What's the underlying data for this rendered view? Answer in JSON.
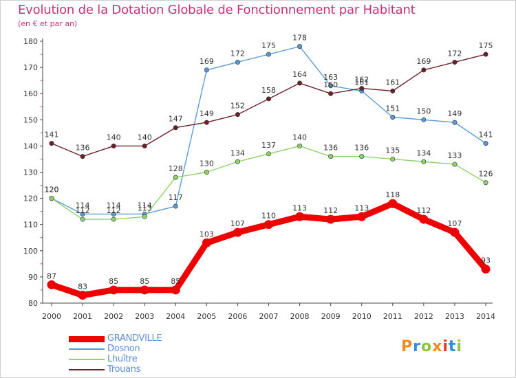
{
  "title": "Evolution de la Dotation Globale de Fonctionnement par Habitant",
  "subtitle": "(en € et par an)",
  "logo": {
    "text": "Proxiti",
    "colors": [
      "#f08c1e",
      "#2f8fd8",
      "#8cc63f",
      "#f08c1e",
      "#e2392b",
      "#2f8fd8",
      "#8cc63f"
    ]
  },
  "chart_data": {
    "type": "line",
    "x": [
      "2000",
      "2001",
      "2002",
      "2003",
      "2004",
      "2005",
      "2006",
      "2007",
      "2008",
      "2009",
      "2010",
      "2011",
      "2012",
      "2013",
      "2014"
    ],
    "ylim": [
      80,
      180
    ],
    "yticks": [
      80,
      90,
      100,
      110,
      120,
      130,
      140,
      150,
      160,
      170,
      180
    ],
    "grid": false,
    "legend_position": "bottom-left",
    "series": [
      {
        "name": "GRANDVILLE",
        "color": "#ee0000",
        "values": [
          87,
          83,
          85,
          85,
          85,
          103,
          107,
          110,
          113,
          112,
          113,
          118,
          112,
          107,
          93
        ]
      },
      {
        "name": "Dosnon",
        "color": "#5b9bd5",
        "values": [
          120,
          114,
          114,
          114,
          117,
          169,
          172,
          175,
          178,
          163,
          161,
          151,
          150,
          149,
          141
        ]
      },
      {
        "name": "Lhuître",
        "color": "#8fd16b",
        "values": [
          120,
          112,
          112,
          113,
          128,
          130,
          134,
          137,
          140,
          136,
          136,
          135,
          134,
          133,
          126
        ]
      },
      {
        "name": "Trouans",
        "color": "#6b1f2a",
        "values": [
          141,
          136,
          140,
          140,
          147,
          149,
          152,
          158,
          164,
          160,
          162,
          161,
          169,
          172,
          175
        ]
      }
    ]
  }
}
